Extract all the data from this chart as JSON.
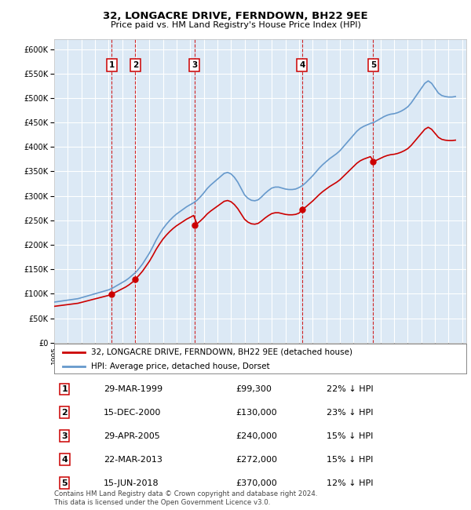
{
  "title": "32, LONGACRE DRIVE, FERNDOWN, BH22 9EE",
  "subtitle": "Price paid vs. HM Land Registry's House Price Index (HPI)",
  "ylim": [
    0,
    620000
  ],
  "yticks": [
    0,
    50000,
    100000,
    150000,
    200000,
    250000,
    300000,
    350000,
    400000,
    450000,
    500000,
    550000,
    600000
  ],
  "xlim_start": 1995.0,
  "xlim_end": 2025.3,
  "plot_bg": "#dce9f5",
  "grid_color": "#ffffff",
  "sale_dates": [
    1999.24,
    2000.96,
    2005.32,
    2013.22,
    2018.46
  ],
  "sale_prices": [
    99300,
    130000,
    240000,
    272000,
    370000
  ],
  "sale_labels": [
    "1",
    "2",
    "3",
    "4",
    "5"
  ],
  "legend_sale": "32, LONGACRE DRIVE, FERNDOWN, BH22 9EE (detached house)",
  "legend_hpi": "HPI: Average price, detached house, Dorset",
  "sale_color": "#cc0000",
  "hpi_color": "#6699cc",
  "footer1": "Contains HM Land Registry data © Crown copyright and database right 2024.",
  "footer2": "This data is licensed under the Open Government Licence v3.0.",
  "table_data": [
    [
      "1",
      "29-MAR-1999",
      "£99,300",
      "22% ↓ HPI"
    ],
    [
      "2",
      "15-DEC-2000",
      "£130,000",
      "23% ↓ HPI"
    ],
    [
      "3",
      "29-APR-2005",
      "£240,000",
      "15% ↓ HPI"
    ],
    [
      "4",
      "22-MAR-2013",
      "£272,000",
      "15% ↓ HPI"
    ],
    [
      "5",
      "15-JUN-2018",
      "£370,000",
      "12% ↓ HPI"
    ]
  ],
  "hpi_years": [
    1995.0,
    1995.25,
    1995.5,
    1995.75,
    1996.0,
    1996.25,
    1996.5,
    1996.75,
    1997.0,
    1997.25,
    1997.5,
    1997.75,
    1998.0,
    1998.25,
    1998.5,
    1998.75,
    1999.0,
    1999.25,
    1999.5,
    1999.75,
    2000.0,
    2000.25,
    2000.5,
    2000.75,
    2001.0,
    2001.25,
    2001.5,
    2001.75,
    2002.0,
    2002.25,
    2002.5,
    2002.75,
    2003.0,
    2003.25,
    2003.5,
    2003.75,
    2004.0,
    2004.25,
    2004.5,
    2004.75,
    2005.0,
    2005.25,
    2005.5,
    2005.75,
    2006.0,
    2006.25,
    2006.5,
    2006.75,
    2007.0,
    2007.25,
    2007.5,
    2007.75,
    2008.0,
    2008.25,
    2008.5,
    2008.75,
    2009.0,
    2009.25,
    2009.5,
    2009.75,
    2010.0,
    2010.25,
    2010.5,
    2010.75,
    2011.0,
    2011.25,
    2011.5,
    2011.75,
    2012.0,
    2012.25,
    2012.5,
    2012.75,
    2013.0,
    2013.25,
    2013.5,
    2013.75,
    2014.0,
    2014.25,
    2014.5,
    2014.75,
    2015.0,
    2015.25,
    2015.5,
    2015.75,
    2016.0,
    2016.25,
    2016.5,
    2016.75,
    2017.0,
    2017.25,
    2017.5,
    2017.75,
    2018.0,
    2018.25,
    2018.5,
    2018.75,
    2019.0,
    2019.25,
    2019.5,
    2019.75,
    2020.0,
    2020.25,
    2020.5,
    2020.75,
    2021.0,
    2021.25,
    2021.5,
    2021.75,
    2022.0,
    2022.25,
    2022.5,
    2022.75,
    2023.0,
    2023.25,
    2023.5,
    2023.75,
    2024.0,
    2024.25,
    2024.5
  ],
  "hpi_values": [
    83000,
    84000,
    85000,
    86000,
    87000,
    88000,
    89000,
    90000,
    92000,
    94000,
    96000,
    98000,
    100000,
    102000,
    104000,
    106000,
    108000,
    111000,
    115000,
    119000,
    123000,
    127000,
    132000,
    138000,
    144000,
    152000,
    161000,
    172000,
    183000,
    196000,
    210000,
    222000,
    233000,
    242000,
    250000,
    257000,
    263000,
    268000,
    273000,
    278000,
    282000,
    286000,
    291000,
    298000,
    306000,
    315000,
    322000,
    328000,
    334000,
    340000,
    346000,
    348000,
    345000,
    338000,
    328000,
    315000,
    302000,
    295000,
    291000,
    290000,
    292000,
    298000,
    305000,
    311000,
    316000,
    318000,
    318000,
    316000,
    314000,
    313000,
    313000,
    314000,
    317000,
    321000,
    327000,
    334000,
    341000,
    349000,
    357000,
    364000,
    370000,
    376000,
    381000,
    386000,
    392000,
    400000,
    408000,
    416000,
    424000,
    432000,
    438000,
    442000,
    445000,
    448000,
    450000,
    454000,
    458000,
    462000,
    465000,
    467000,
    468000,
    470000,
    473000,
    477000,
    482000,
    490000,
    500000,
    510000,
    520000,
    530000,
    535000,
    530000,
    520000,
    510000,
    505000,
    503000,
    502000,
    502000,
    503000
  ]
}
